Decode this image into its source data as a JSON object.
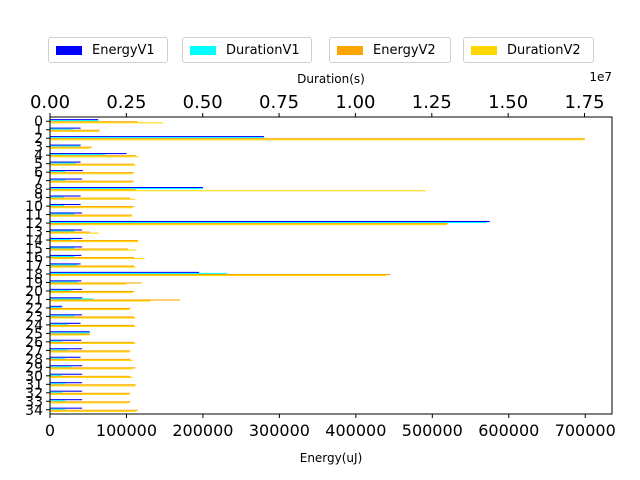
{
  "chart_data": {
    "type": "bar",
    "orientation": "horizontal",
    "categories": [
      "0",
      "1",
      "2",
      "3",
      "4",
      "5",
      "6",
      "7",
      "8",
      "9",
      "10",
      "11",
      "12",
      "13",
      "14",
      "15",
      "16",
      "17",
      "18",
      "19",
      "20",
      "21",
      "22",
      "23",
      "24",
      "25",
      "26",
      "27",
      "28",
      "29",
      "30",
      "31",
      "32",
      "33",
      "34"
    ],
    "xlabel_bottom": "Energy(uJ)",
    "xlabel_top": "Duration(s)",
    "top_axis_multiplier": "1e7",
    "xlim_bottom": [
      0,
      735000
    ],
    "xlim_top": [
      0,
      18400000
    ],
    "ylim": [
      -0.5,
      34.5
    ],
    "y_inverted": true,
    "bottom_ticks": [
      "0",
      "100000",
      "200000",
      "300000",
      "400000",
      "500000",
      "600000",
      "700000"
    ],
    "top_ticks": [
      "0.00",
      "0.25",
      "0.50",
      "0.75",
      "1.00",
      "1.25",
      "1.50",
      "1.75"
    ],
    "legend": {
      "placement": "top-center",
      "columns": 4
    },
    "series": [
      {
        "name": "EnergyV1",
        "color": "#0000ff",
        "axis": "bottom",
        "values": [
          63000,
          40000,
          280000,
          40000,
          100000,
          40000,
          43000,
          42000,
          200000,
          40000,
          40000,
          42000,
          575000,
          42000,
          42000,
          42000,
          41000,
          40000,
          195000,
          41000,
          42000,
          42000,
          16000,
          42000,
          40000,
          52000,
          41000,
          42000,
          40000,
          42000,
          42000,
          42000,
          42000,
          42000,
          42000
        ]
      },
      {
        "name": "DurationV1",
        "color": "#00ffff",
        "axis": "top",
        "values": [
          1600000,
          750000,
          7000000,
          1000000,
          1800000,
          850000,
          500000,
          500000,
          5000000,
          450000,
          450000,
          800000,
          14300000,
          800000,
          700000,
          800000,
          800000,
          900000,
          5800000,
          900000,
          700000,
          1400000,
          400000,
          800000,
          600000,
          1300000,
          400000,
          600000,
          500000,
          700000,
          400000,
          500000,
          400000,
          500000,
          500000
        ]
      },
      {
        "name": "EnergyV2",
        "color": "#ffa500",
        "axis": "bottom",
        "values": [
          115000,
          65000,
          700000,
          55000,
          112000,
          110000,
          110000,
          110000,
          112000,
          105000,
          110000,
          107000,
          520000,
          52000,
          115000,
          102000,
          110000,
          110000,
          445000,
          120000,
          110000,
          170000,
          105000,
          110000,
          110000,
          52000,
          110000,
          105000,
          105000,
          112000,
          105000,
          112000,
          105000,
          105000,
          115000
        ]
      },
      {
        "name": "DurationV2",
        "color": "#ffd700",
        "axis": "top",
        "values": [
          3700000,
          1600000,
          17500000,
          1300000,
          2900000,
          2800000,
          2700000,
          2700000,
          12300000,
          2800000,
          2700000,
          2700000,
          13000000,
          1600000,
          2900000,
          2800000,
          3100000,
          2800000,
          11000000,
          2500000,
          2700000,
          3300000,
          2600000,
          2800000,
          2800000,
          1300000,
          2800000,
          2600000,
          2700000,
          2700000,
          2700000,
          2800000,
          2600000,
          2600000,
          2800000
        ]
      }
    ]
  }
}
